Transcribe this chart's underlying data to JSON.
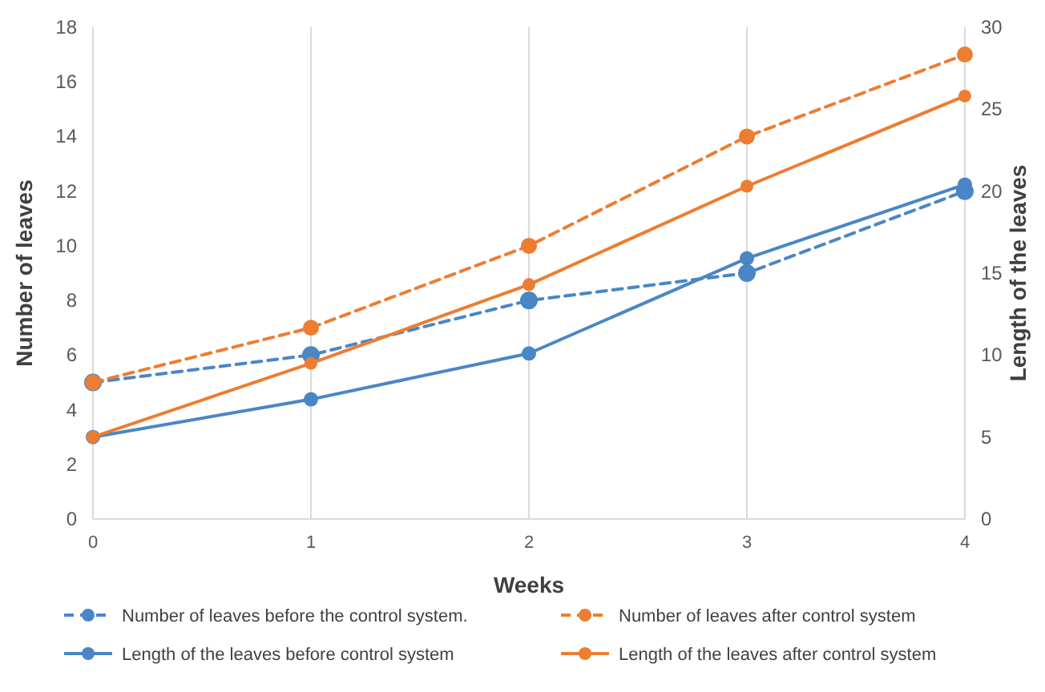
{
  "chart_data": {
    "type": "line",
    "xlabel": "Weeks",
    "ylabel": "Number of leaves",
    "y2label": "Length of the leaves",
    "x": [
      0,
      1,
      2,
      3,
      4
    ],
    "xlim": [
      0,
      4
    ],
    "xticks": [
      0,
      1,
      2,
      3,
      4
    ],
    "ylim": [
      0,
      18
    ],
    "yticks": [
      0,
      2,
      4,
      6,
      8,
      10,
      12,
      14,
      16,
      18
    ],
    "y2lim": [
      0,
      30
    ],
    "y2ticks": [
      0,
      5,
      10,
      15,
      20,
      25,
      30
    ],
    "grid": "x",
    "legend": "bottom",
    "marker": "circle",
    "series": [
      {
        "name": "Number of leaves before the control system.",
        "color": "#4a86c6",
        "values": [
          5,
          6,
          8,
          9,
          12
        ],
        "line_style": "dashed"
      },
      {
        "name": "Number of leaves after control system",
        "color": "#ed7d31",
        "values": [
          5,
          7,
          10,
          14,
          17
        ],
        "line_style": "dashed"
      },
      {
        "name": "Length of the leaves before control system",
        "color": "#4a86c6",
        "values": [
          5,
          7.3,
          10.1,
          15.9,
          20.4
        ],
        "line_style": "solid",
        "axis": "y2"
      },
      {
        "name": "Length of the leaves after control system",
        "color": "#ed7d31",
        "values": [
          5,
          9.5,
          14.3,
          20.3,
          25.8
        ],
        "line_style": "solid",
        "axis": "y2"
      }
    ]
  }
}
